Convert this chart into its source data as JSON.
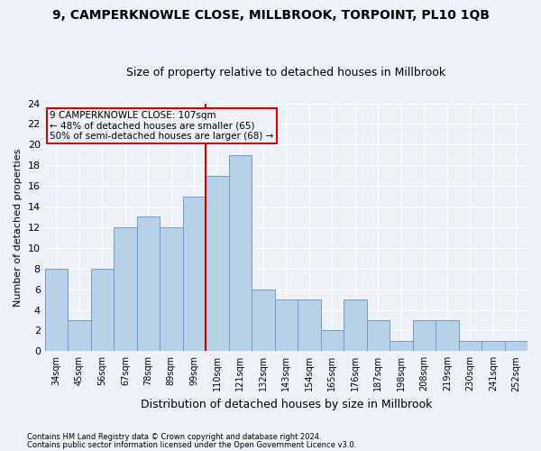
{
  "title": "9, CAMPERKNOWLE CLOSE, MILLBROOK, TORPOINT, PL10 1QB",
  "subtitle": "Size of property relative to detached houses in Millbrook",
  "xlabel": "Distribution of detached houses by size in Millbrook",
  "ylabel": "Number of detached properties",
  "categories": [
    "34sqm",
    "45sqm",
    "56sqm",
    "67sqm",
    "78sqm",
    "89sqm",
    "99sqm",
    "110sqm",
    "121sqm",
    "132sqm",
    "143sqm",
    "154sqm",
    "165sqm",
    "176sqm",
    "187sqm",
    "198sqm",
    "208sqm",
    "219sqm",
    "230sqm",
    "241sqm",
    "252sqm"
  ],
  "values": [
    8,
    3,
    8,
    12,
    13,
    12,
    15,
    17,
    19,
    6,
    5,
    5,
    2,
    5,
    3,
    1,
    3,
    3,
    1,
    1,
    1
  ],
  "bar_color": "#b8d0e8",
  "bar_edge_color": "#6a9ec5",
  "vline_color": "#cc0000",
  "annotation_text": "9 CAMPERKNOWLE CLOSE: 107sqm\n← 48% of detached houses are smaller (65)\n50% of semi-detached houses are larger (68) →",
  "annotation_box_color": "#cc0000",
  "footer1": "Contains HM Land Registry data © Crown copyright and database right 2024.",
  "footer2": "Contains public sector information licensed under the Open Government Licence v3.0.",
  "bg_color": "#eef2f8",
  "grid_color": "#ffffff",
  "ylim": [
    0,
    24
  ],
  "yticks": [
    0,
    2,
    4,
    6,
    8,
    10,
    12,
    14,
    16,
    18,
    20,
    22,
    24
  ]
}
